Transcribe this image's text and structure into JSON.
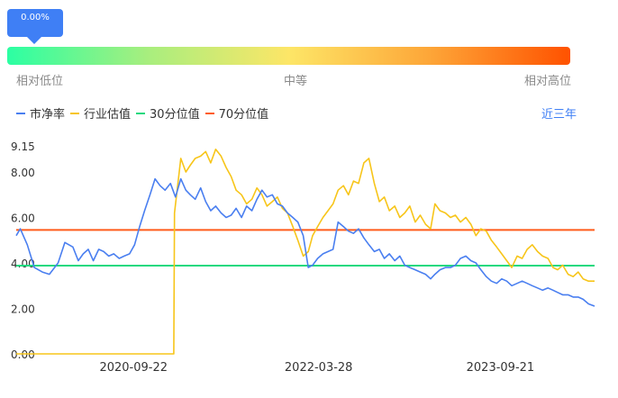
{
  "gauge": {
    "percentile_label": "0.00%",
    "percentile_value": 0.0,
    "label_low": "相对低位",
    "label_mid": "中等",
    "label_high": "相对高位",
    "colors": [
      "#2bffa3",
      "#fde667",
      "#ff5200"
    ]
  },
  "legend": [
    {
      "label": "市净率",
      "color": "#4a7ff0"
    },
    {
      "label": "行业估值",
      "color": "#f7c51a"
    },
    {
      "label": "30分位值",
      "color": "#1fd97f"
    },
    {
      "label": "70分位值",
      "color": "#ff5c1a"
    }
  ],
  "range_button": "近三年",
  "chart_data": {
    "type": "line",
    "ylim": [
      0,
      9.15
    ],
    "yticks": [
      "9.15",
      "8.00",
      "6.00",
      "4.00",
      "2.00",
      "0.00"
    ],
    "ytick_values": [
      9.15,
      8.0,
      6.0,
      4.0,
      2.0,
      0.0
    ],
    "xticks": [
      "2020-09-22",
      "2022-03-28",
      "2023-09-21"
    ],
    "x_range": [
      "2019-10-08",
      "2024-06-28"
    ],
    "grid": false,
    "hlines": [
      {
        "name": "30分位值",
        "value": 3.88,
        "color": "#1fd97f"
      },
      {
        "name": "70分位值",
        "value": 5.45,
        "color": "#ff5c1a"
      }
    ],
    "series": [
      {
        "name": "市净率",
        "color": "#4a7ff0",
        "x": [
          "2019-10-08",
          "2019-10-20",
          "2019-11-10",
          "2019-12-01",
          "2019-12-25",
          "2020-01-15",
          "2020-02-10",
          "2020-03-01",
          "2020-03-25",
          "2020-04-10",
          "2020-04-25",
          "2020-05-10",
          "2020-05-25",
          "2020-06-10",
          "2020-06-25",
          "2020-07-10",
          "2020-07-25",
          "2020-08-10",
          "2020-08-25",
          "2020-09-10",
          "2020-09-25",
          "2020-10-10",
          "2020-10-25",
          "2020-11-10",
          "2020-11-25",
          "2020-12-10",
          "2020-12-25",
          "2021-01-10",
          "2021-01-25",
          "2021-02-10",
          "2021-02-25",
          "2021-03-10",
          "2021-03-25",
          "2021-04-10",
          "2021-04-25",
          "2021-05-10",
          "2021-05-25",
          "2021-06-10",
          "2021-06-25",
          "2021-07-10",
          "2021-07-25",
          "2021-08-10",
          "2021-08-25",
          "2021-09-10",
          "2021-09-25",
          "2021-10-10",
          "2021-10-25",
          "2021-11-10",
          "2021-11-25",
          "2021-12-10",
          "2021-12-25",
          "2022-01-10",
          "2022-01-25",
          "2022-02-10",
          "2022-02-25",
          "2022-03-10",
          "2022-03-25",
          "2022-04-10",
          "2022-04-25",
          "2022-05-10",
          "2022-05-25",
          "2022-06-10",
          "2022-06-25",
          "2022-07-10",
          "2022-07-25",
          "2022-08-10",
          "2022-08-25",
          "2022-09-10",
          "2022-09-25",
          "2022-10-10",
          "2022-10-25",
          "2022-11-10",
          "2022-11-25",
          "2022-12-10",
          "2022-12-25",
          "2023-01-10",
          "2023-01-25",
          "2023-02-10",
          "2023-02-25",
          "2023-03-10",
          "2023-03-25",
          "2023-04-10",
          "2023-04-25",
          "2023-05-10",
          "2023-05-25",
          "2023-06-10",
          "2023-06-25",
          "2023-07-10",
          "2023-07-25",
          "2023-08-10",
          "2023-08-25",
          "2023-09-10",
          "2023-09-25",
          "2023-10-10",
          "2023-10-25",
          "2023-11-10",
          "2023-11-25",
          "2023-12-10",
          "2023-12-25",
          "2024-01-10",
          "2024-01-25",
          "2024-02-10",
          "2024-02-25",
          "2024-03-10",
          "2024-03-25",
          "2024-04-10",
          "2024-04-25",
          "2024-05-10",
          "2024-05-25",
          "2024-06-10",
          "2024-06-28"
        ],
        "y": [
          5.2,
          5.5,
          4.8,
          3.8,
          3.6,
          3.5,
          4.0,
          4.9,
          4.7,
          4.1,
          4.4,
          4.6,
          4.1,
          4.6,
          4.5,
          4.3,
          4.4,
          4.2,
          4.3,
          4.4,
          4.8,
          5.6,
          6.3,
          7.0,
          7.7,
          7.4,
          7.2,
          7.5,
          6.9,
          7.7,
          7.2,
          7.0,
          6.8,
          7.3,
          6.7,
          6.3,
          6.5,
          6.2,
          6.0,
          6.1,
          6.4,
          6.0,
          6.5,
          6.3,
          6.8,
          7.2,
          6.9,
          7.0,
          6.6,
          6.5,
          6.2,
          6.0,
          5.8,
          5.2,
          3.8,
          3.9,
          4.2,
          4.4,
          4.5,
          4.6,
          5.8,
          5.6,
          5.4,
          5.3,
          5.5,
          5.1,
          4.8,
          4.5,
          4.6,
          4.2,
          4.4,
          4.1,
          4.3,
          3.9,
          3.8,
          3.7,
          3.6,
          3.5,
          3.3,
          3.5,
          3.7,
          3.8,
          3.8,
          3.9,
          4.2,
          4.3,
          4.1,
          4.0,
          3.7,
          3.4,
          3.2,
          3.1,
          3.3,
          3.2,
          3.0,
          3.1,
          3.2,
          3.1,
          3.0,
          2.9,
          2.8,
          2.9,
          2.8,
          2.7,
          2.6,
          2.6,
          2.5,
          2.5,
          2.4,
          2.2,
          2.1
        ]
      },
      {
        "name": "行业估值",
        "color": "#f7c51a",
        "x": [
          "2019-10-08",
          "2021-01-20",
          "2021-01-22",
          "2021-02-10",
          "2021-02-25",
          "2021-03-10",
          "2021-03-25",
          "2021-04-10",
          "2021-04-25",
          "2021-05-10",
          "2021-05-25",
          "2021-06-10",
          "2021-06-25",
          "2021-07-10",
          "2021-07-25",
          "2021-08-10",
          "2021-08-25",
          "2021-09-10",
          "2021-09-25",
          "2021-10-10",
          "2021-10-25",
          "2021-11-10",
          "2021-11-25",
          "2021-12-10",
          "2021-12-25",
          "2022-01-10",
          "2022-01-25",
          "2022-02-10",
          "2022-02-25",
          "2022-03-10",
          "2022-03-25",
          "2022-04-10",
          "2022-04-25",
          "2022-05-10",
          "2022-05-25",
          "2022-06-10",
          "2022-06-25",
          "2022-07-10",
          "2022-07-25",
          "2022-08-10",
          "2022-08-25",
          "2022-09-10",
          "2022-09-25",
          "2022-10-10",
          "2022-10-25",
          "2022-11-10",
          "2022-11-25",
          "2022-12-10",
          "2022-12-25",
          "2023-01-10",
          "2023-01-25",
          "2023-02-10",
          "2023-02-25",
          "2023-03-10",
          "2023-03-25",
          "2023-04-10",
          "2023-04-25",
          "2023-05-10",
          "2023-05-25",
          "2023-06-10",
          "2023-06-25",
          "2023-07-10",
          "2023-07-25",
          "2023-08-10",
          "2023-08-25",
          "2023-09-10",
          "2023-09-25",
          "2023-10-10",
          "2023-10-25",
          "2023-11-10",
          "2023-11-25",
          "2023-12-10",
          "2023-12-25",
          "2024-01-10",
          "2024-01-25",
          "2024-02-10",
          "2024-02-25",
          "2024-03-10",
          "2024-03-25",
          "2024-04-10",
          "2024-04-25",
          "2024-05-10",
          "2024-05-25",
          "2024-06-10",
          "2024-06-28"
        ],
        "y": [
          0.0,
          0.0,
          6.2,
          8.6,
          8.0,
          8.3,
          8.6,
          8.7,
          8.9,
          8.4,
          9.0,
          8.7,
          8.2,
          7.8,
          7.2,
          7.0,
          6.6,
          6.8,
          7.3,
          7.0,
          6.5,
          6.7,
          6.9,
          6.4,
          6.2,
          5.6,
          5.0,
          4.3,
          4.5,
          5.2,
          5.6,
          6.0,
          6.3,
          6.6,
          7.2,
          7.4,
          7.0,
          7.6,
          7.5,
          8.4,
          8.6,
          7.5,
          6.7,
          6.9,
          6.3,
          6.5,
          6.0,
          6.2,
          6.5,
          5.8,
          6.1,
          5.7,
          5.5,
          6.6,
          6.3,
          6.2,
          6.0,
          6.1,
          5.8,
          6.0,
          5.7,
          5.2,
          5.5,
          5.4,
          5.0,
          4.7,
          4.4,
          4.1,
          3.8,
          4.3,
          4.2,
          4.6,
          4.8,
          4.5,
          4.3,
          4.2,
          3.8,
          3.7,
          3.9,
          3.5,
          3.4,
          3.6,
          3.3,
          3.2,
          3.2
        ]
      }
    ]
  }
}
